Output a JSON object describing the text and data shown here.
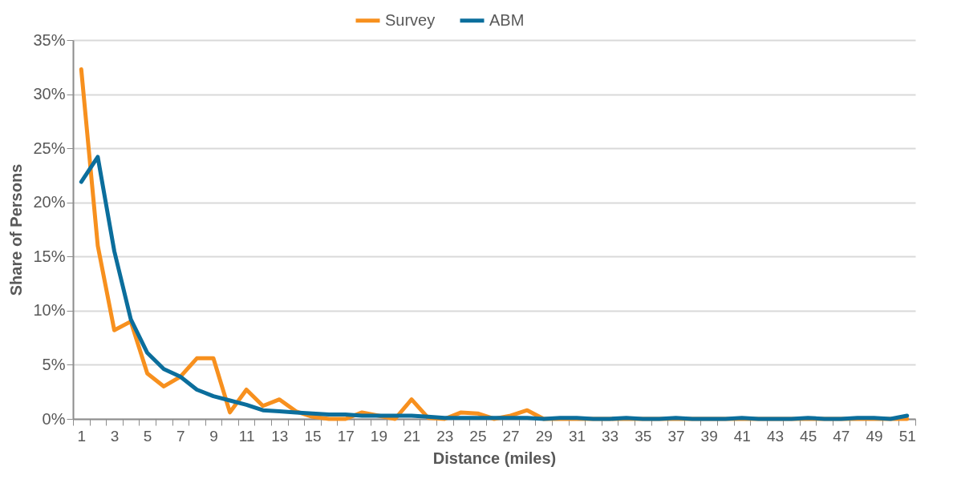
{
  "chart_data": {
    "type": "line",
    "xlabel": "Distance (miles)",
    "ylabel": "Share of Persons",
    "x": [
      1,
      2,
      3,
      4,
      5,
      6,
      7,
      8,
      9,
      10,
      11,
      12,
      13,
      14,
      15,
      16,
      17,
      18,
      19,
      20,
      21,
      22,
      23,
      24,
      25,
      26,
      27,
      28,
      29,
      30,
      31,
      32,
      33,
      34,
      35,
      36,
      37,
      38,
      39,
      40,
      41,
      42,
      43,
      44,
      45,
      46,
      47,
      48,
      49,
      50,
      51
    ],
    "xlim": [
      0.5,
      51.5
    ],
    "xticks": [
      1,
      3,
      5,
      7,
      9,
      11,
      13,
      15,
      17,
      19,
      21,
      23,
      25,
      27,
      29,
      31,
      33,
      35,
      37,
      39,
      41,
      43,
      45,
      47,
      49,
      51,
      {
        "value": 0.5,
        "label": null
      },
      {
        "value": 1.5,
        "label": null
      },
      {
        "value": 2.5,
        "label": null
      },
      {
        "value": 3.5,
        "label": null
      },
      {
        "value": 4.5,
        "label": null
      },
      {
        "value": 5.5,
        "label": null
      },
      {
        "value": 6.5,
        "label": null
      },
      {
        "value": 7.5,
        "label": null
      },
      {
        "value": 8.5,
        "label": null
      },
      {
        "value": 9.5,
        "label": null
      },
      {
        "value": 10.5,
        "label": null
      },
      {
        "value": 11.5,
        "label": null
      },
      {
        "value": 12.5,
        "label": null
      },
      {
        "value": 13.5,
        "label": null
      },
      {
        "value": 14.5,
        "label": null
      },
      {
        "value": 15.5,
        "label": null
      },
      {
        "value": 16.5,
        "label": null
      },
      {
        "value": 17.5,
        "label": null
      },
      {
        "value": 18.5,
        "label": null
      },
      {
        "value": 19.5,
        "label": null
      },
      {
        "value": 20.5,
        "label": null
      },
      {
        "value": 21.5,
        "label": null
      },
      {
        "value": 22.5,
        "label": null
      },
      {
        "value": 23.5,
        "label": null
      },
      {
        "value": 24.5,
        "label": null
      },
      {
        "value": 25.5,
        "label": null
      },
      {
        "value": 26.5,
        "label": null
      },
      {
        "value": 27.5,
        "label": null
      },
      {
        "value": 28.5,
        "label": null
      },
      {
        "value": 29.5,
        "label": null
      },
      {
        "value": 30.5,
        "label": null
      },
      {
        "value": 31.5,
        "label": null
      },
      {
        "value": 32.5,
        "label": null
      },
      {
        "value": 33.5,
        "label": null
      },
      {
        "value": 34.5,
        "label": null
      },
      {
        "value": 35.5,
        "label": null
      },
      {
        "value": 36.5,
        "label": null
      },
      {
        "value": 37.5,
        "label": null
      },
      {
        "value": 38.5,
        "label": null
      },
      {
        "value": 39.5,
        "label": null
      },
      {
        "value": 40.5,
        "label": null
      },
      {
        "value": 41.5,
        "label": null
      },
      {
        "value": 42.5,
        "label": null
      },
      {
        "value": 43.5,
        "label": null
      },
      {
        "value": 44.5,
        "label": null
      },
      {
        "value": 45.5,
        "label": null
      },
      {
        "value": 46.5,
        "label": null
      },
      {
        "value": 47.5,
        "label": null
      },
      {
        "value": 48.5,
        "label": null
      },
      {
        "value": 49.5,
        "label": null
      },
      {
        "value": 50.5,
        "label": null
      },
      {
        "value": 51.5,
        "label": null
      }
    ],
    "series": [
      {
        "name": "Survey",
        "color": "#f7901e",
        "values": [
          32.3,
          16,
          8.2,
          9,
          4.2,
          3,
          3.9,
          5.6,
          5.6,
          0.6,
          2.7,
          1.2,
          1.8,
          0.7,
          0.2,
          0,
          0,
          0.6,
          0.3,
          0,
          1.8,
          0.1,
          0,
          0.6,
          0.5,
          0,
          0.3,
          0.8,
          0,
          0,
          0,
          0,
          0,
          0,
          0,
          0,
          0,
          0,
          0,
          0,
          0,
          0,
          0,
          0,
          0,
          0,
          0,
          0,
          0,
          0,
          0
        ]
      },
      {
        "name": "ABM",
        "color": "#0b6e9c",
        "values": [
          21.9,
          24.2,
          15.5,
          9.2,
          6.1,
          4.6,
          3.9,
          2.7,
          2.1,
          1.7,
          1.3,
          0.8,
          0.7,
          0.6,
          0.5,
          0.4,
          0.4,
          0.3,
          0.3,
          0.3,
          0.3,
          0.2,
          0.1,
          0.1,
          0.1,
          0.1,
          0.1,
          0.1,
          0,
          0.1,
          0.1,
          0,
          0,
          0.1,
          0,
          0,
          0.1,
          0,
          0,
          0,
          0.1,
          0,
          0,
          0,
          0.1,
          0,
          0,
          0.1,
          0.1,
          0,
          0.3
        ]
      }
    ],
    "ylim": [
      0,
      35
    ],
    "yticks": [
      {
        "value": 0,
        "label": "0%"
      },
      {
        "value": 5,
        "label": "5%"
      },
      {
        "value": 10,
        "label": "10%"
      },
      {
        "value": 15,
        "label": "15%"
      },
      {
        "value": 20,
        "label": "20%"
      },
      {
        "value": 25,
        "label": "25%"
      },
      {
        "value": 30,
        "label": "30%"
      },
      {
        "value": 35,
        "label": "35%"
      }
    ],
    "grid": "y",
    "legend": "top",
    "marker": "none",
    "line_style": "solid"
  }
}
